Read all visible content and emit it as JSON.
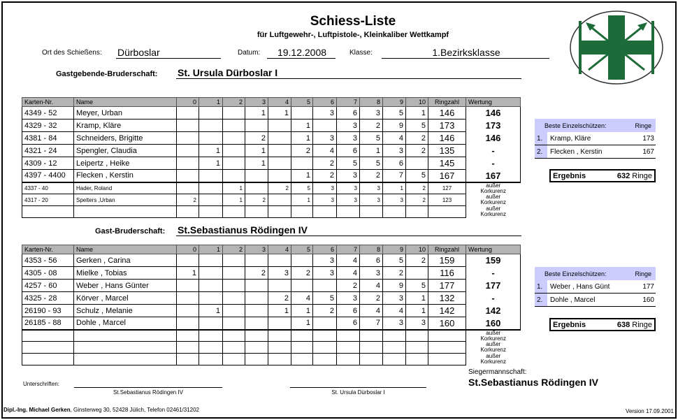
{
  "title": "Schiess-Liste",
  "subtitle": "für Luftgewehr-, Luftpistole-, Kleinkaliber Wettkampf",
  "ort_label": "Ort des Schießens:",
  "ort": "Dürboslar",
  "datum_label": "Datum:",
  "datum": "19.12.2008",
  "klasse_label": "Klasse:",
  "klasse": "1.Bezirksklasse",
  "headers": [
    "Karten-Nr.",
    "Name",
    "0",
    "1",
    "2",
    "3",
    "4",
    "5",
    "6",
    "7",
    "8",
    "9",
    "10",
    "Ringzahl",
    "Wertung"
  ],
  "aussen_label": "außer",
  "konkurrenz_label": "Korkurenz",
  "home": {
    "label": "Gastgebende-Bruderschaft:",
    "name": "St. Ursula Dürboslar I",
    "rows": [
      {
        "karte": "4349 - 52",
        "name": "Meyer, Urban",
        "counts": [
          "",
          "",
          "",
          "1",
          "1",
          "",
          "3",
          "6",
          "3",
          "5",
          "1"
        ],
        "ringzahl": "146",
        "wertung": "146"
      },
      {
        "karte": "4329 - 32",
        "name": "Kramp, Kläre",
        "counts": [
          "",
          "",
          "",
          "",
          "",
          "1",
          "",
          "3",
          "2",
          "9",
          "5"
        ],
        "ringzahl": "173",
        "wertung": "173"
      },
      {
        "karte": "4381 - 84",
        "name": "Schneiders, Brigitte",
        "counts": [
          "",
          "",
          "",
          "2",
          "",
          "1",
          "3",
          "3",
          "5",
          "4",
          "2"
        ],
        "ringzahl": "146",
        "wertung": "146"
      },
      {
        "karte": "4321 - 24",
        "name": "Spengler, Claudia",
        "counts": [
          "",
          "1",
          "",
          "1",
          "",
          "2",
          "4",
          "6",
          "1",
          "3",
          "2"
        ],
        "ringzahl": "135",
        "wertung": "-"
      },
      {
        "karte": "4309 - 12",
        "name": "Leipertz , Heike",
        "counts": [
          "",
          "1",
          "",
          "1",
          "",
          "",
          "2",
          "5",
          "5",
          "6",
          ""
        ],
        "ringzahl": "145",
        "wertung": "-"
      },
      {
        "karte": "4397 - 4400",
        "name": "Flecken , Kerstin",
        "counts": [
          "",
          "",
          "",
          "",
          "",
          "1",
          "2",
          "3",
          "2",
          "7",
          "5"
        ],
        "ringzahl": "167",
        "wertung": "167"
      }
    ],
    "extra": [
      {
        "karte": "4337 - 40",
        "name": "Hader,  Roland",
        "counts": [
          "",
          "",
          "1",
          "",
          "2",
          "5",
          "3",
          "3",
          "3",
          "1",
          "2"
        ],
        "ringzahl": "127"
      },
      {
        "karte": "4317 - 20",
        "name": "Spelters ,Urban",
        "counts": [
          "2",
          "",
          "1",
          "2",
          "",
          "1",
          "3",
          "3",
          "3",
          "3",
          "2"
        ],
        "ringzahl": "123"
      },
      {
        "karte": "",
        "name": "",
        "counts": [
          "",
          "",
          "",
          "",
          "",
          "",
          "",
          "",
          "",
          "",
          ""
        ],
        "ringzahl": ""
      }
    ],
    "best_label": "Beste Einzelschützen:",
    "ringe_label": "Ringe",
    "best": [
      {
        "rank": "1.",
        "name": "Kramp, Kläre",
        "ringe": "173"
      },
      {
        "rank": "2.",
        "name": "Flecken , Kerstin",
        "ringe": "167"
      }
    ],
    "ergebnis_label": "Ergebnis",
    "ergebnis": "632",
    "ergebnis_unit": "Ringe"
  },
  "guest": {
    "label": "Gast-Bruderschaft:",
    "name": "St.Sebastianus Rödingen IV",
    "rows": [
      {
        "karte": "4353 - 56",
        "name": "Gerken , Carina",
        "counts": [
          "",
          "",
          "",
          "",
          "",
          "",
          "3",
          "4",
          "6",
          "5",
          "2"
        ],
        "ringzahl": "159",
        "wertung": "159"
      },
      {
        "karte": "4305 - 08",
        "name": "Mielke , Tobias",
        "counts": [
          "1",
          "",
          "",
          "2",
          "3",
          "2",
          "3",
          "4",
          "3",
          "2",
          ""
        ],
        "ringzahl": "116",
        "wertung": "-"
      },
      {
        "karte": "4257 - 60",
        "name": "Weber , Hans Günter",
        "counts": [
          "",
          "",
          "",
          "",
          "",
          "",
          "",
          "2",
          "4",
          "9",
          "5"
        ],
        "ringzahl": "177",
        "wertung": "177"
      },
      {
        "karte": "4325 - 28",
        "name": "Körver , Marcel",
        "counts": [
          "",
          "",
          "",
          "",
          "2",
          "4",
          "5",
          "3",
          "2",
          "3",
          "1"
        ],
        "ringzahl": "132",
        "wertung": "-"
      },
      {
        "karte": "26190 - 93",
        "name": "Schulz , Melanie",
        "counts": [
          "",
          "1",
          "",
          "",
          "1",
          "1",
          "2",
          "6",
          "4",
          "4",
          "1"
        ],
        "ringzahl": "142",
        "wertung": "142"
      },
      {
        "karte": "26185 - 88",
        "name": "Dohle , Marcel",
        "counts": [
          "",
          "",
          "",
          "",
          "",
          "1",
          "",
          "6",
          "7",
          "3",
          "3"
        ],
        "ringzahl": "160",
        "wertung": "160"
      }
    ],
    "extra": [
      {
        "karte": "",
        "name": "",
        "counts": [
          "",
          "",
          "",
          "",
          "",
          "",
          "",
          "",
          "",
          "",
          ""
        ],
        "ringzahl": ""
      },
      {
        "karte": "",
        "name": "",
        "counts": [
          "",
          "",
          "",
          "",
          "",
          "",
          "",
          "",
          "",
          "",
          ""
        ],
        "ringzahl": ""
      },
      {
        "karte": "",
        "name": "",
        "counts": [
          "",
          "",
          "",
          "",
          "",
          "",
          "",
          "",
          "",
          "",
          ""
        ],
        "ringzahl": ""
      }
    ],
    "best_label": "Beste Einzelschützen:",
    "ringe_label": "Ringe",
    "best": [
      {
        "rank": "1.",
        "name": "Weber , Hans Günt",
        "ringe": "177"
      },
      {
        "rank": "2.",
        "name": "Dohle , Marcel",
        "ringe": "160"
      }
    ],
    "ergebnis_label": "Ergebnis",
    "ergebnis": "638",
    "ergebnis_unit": "Ringe"
  },
  "sieger_label": "Siegermannschaft:",
  "sieger": "St.Sebastianus Rödingen IV",
  "unterschriften_label": "Unterschriften:",
  "sign1": "St.Sebastianus Rödingen IV",
  "sign2": "St. Ursula Dürboslar I",
  "footer_name": "Dipl.-Ing. Michael Gerken",
  "footer_addr": ", Ginsterweg 30, 52428 Jülich, Telefon 02461/31202",
  "version": "Version 17.09.2001",
  "colors": {
    "logo_green": "#1e6b3a",
    "header_gray": "#b4b4b4",
    "best_bg": "#ccccff"
  },
  "logo": "green-cross-arrows-emblem"
}
